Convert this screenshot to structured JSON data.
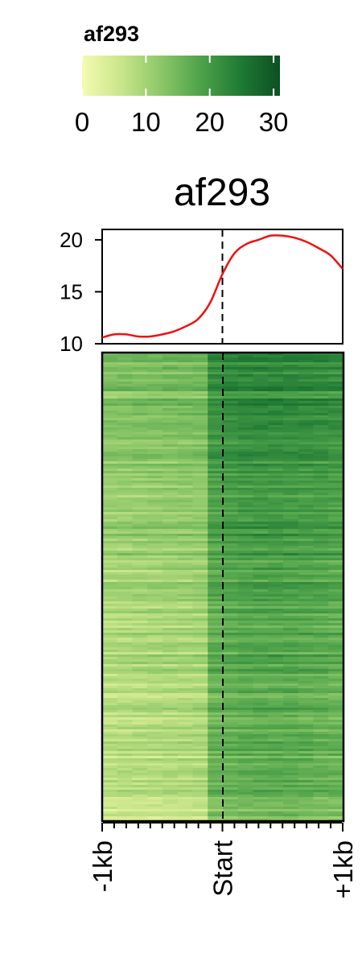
{
  "chart_data": {
    "type": "heatmap",
    "title": "af293",
    "colorbar": {
      "title": "af293",
      "ticks": [
        0,
        10,
        20,
        30
      ],
      "range": [
        0,
        31
      ],
      "colors": [
        "#f4fbb0",
        "#c9e58a",
        "#8cc768",
        "#4ea24a",
        "#1f7a34",
        "#0d5023"
      ]
    },
    "profile": {
      "yticks": [
        10,
        15,
        20
      ],
      "ylim": [
        10,
        21
      ],
      "line_color": "#ee1111",
      "x": [
        -1.0,
        -0.9,
        -0.8,
        -0.7,
        -0.6,
        -0.5,
        -0.4,
        -0.3,
        -0.2,
        -0.1,
        0.0,
        0.1,
        0.2,
        0.3,
        0.4,
        0.5,
        0.6,
        0.7,
        0.8,
        0.9,
        1.0
      ],
      "y": [
        10.6,
        10.9,
        10.9,
        10.7,
        10.7,
        10.9,
        11.2,
        11.7,
        12.4,
        14.0,
        16.7,
        18.7,
        19.6,
        20.0,
        20.4,
        20.4,
        20.2,
        19.8,
        19.2,
        18.5,
        17.2
      ]
    },
    "xaxis": {
      "tick_labels": [
        "-1kb",
        "Start",
        "+1kb"
      ],
      "tick_positions": [
        -1,
        0,
        1
      ],
      "range": [
        -1,
        1
      ]
    },
    "reference_line": {
      "x": 0,
      "style": "dashed"
    }
  }
}
